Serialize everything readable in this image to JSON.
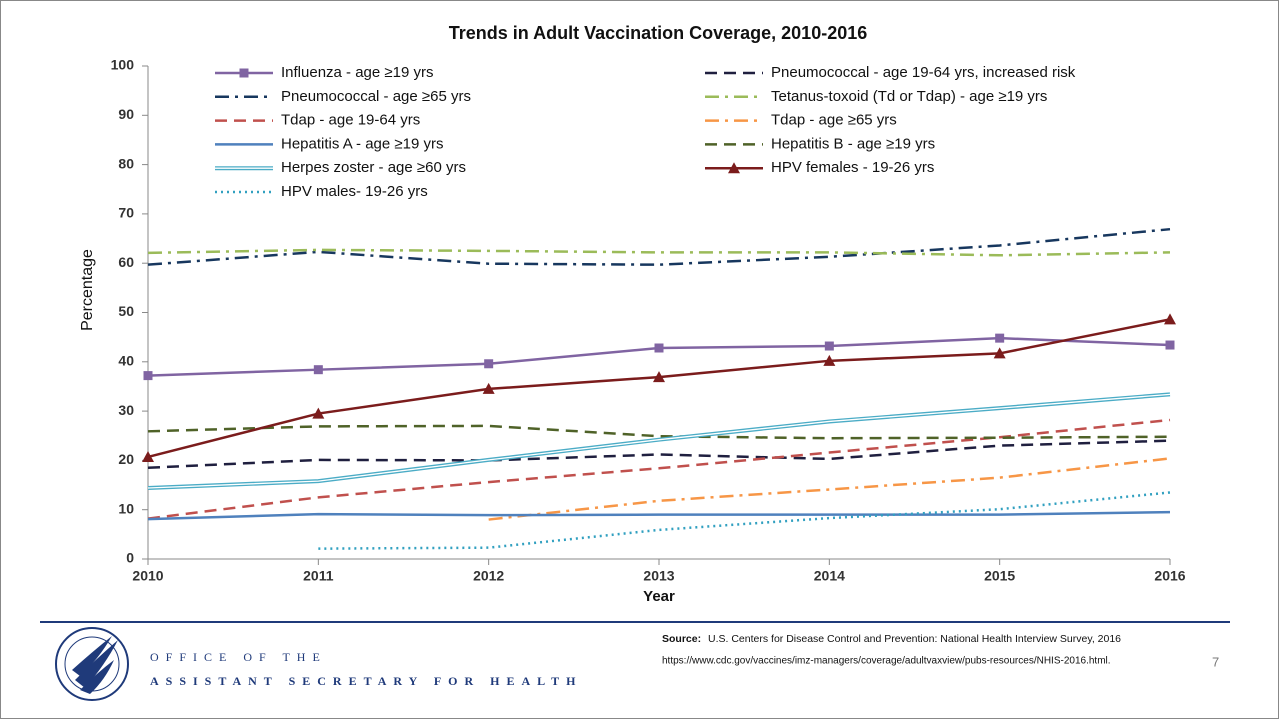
{
  "chart_data": {
    "type": "line",
    "title": "Trends in Adult Vaccination Coverage, 2010-2016",
    "x_label": "Year",
    "y_label": "Percentage",
    "x": [
      2010,
      2011,
      2012,
      2013,
      2014,
      2015,
      2016
    ],
    "xlim": [
      2010,
      2016
    ],
    "xticks": [
      2010,
      2011,
      2012,
      2013,
      2014,
      2015,
      2016
    ],
    "ylim": [
      0,
      100
    ],
    "yticks": [
      0,
      10,
      20,
      30,
      40,
      50,
      60,
      70,
      80,
      90,
      100
    ],
    "grid": false,
    "legend": "top",
    "series": [
      {
        "name": "Influenza - age ≥19 yrs",
        "color": "#8064a2",
        "dash": "solid",
        "marker": "square",
        "values": [
          37.2,
          38.4,
          39.6,
          42.8,
          43.2,
          44.8,
          43.4
        ]
      },
      {
        "name": "Pneumococcal - age 19-64 yrs, increased risk",
        "color": "#1f1f3f",
        "dash": "dash",
        "values": [
          18.5,
          20.1,
          20.0,
          21.2,
          20.3,
          23.0,
          24.0
        ]
      },
      {
        "name": "Pneumococcal - age ≥65 yrs",
        "color": "#17375e",
        "dash": "dashdot",
        "values": [
          59.7,
          62.3,
          59.9,
          59.7,
          61.3,
          63.6,
          66.9
        ]
      },
      {
        "name": "Tetanus-toxoid (Td or Tdap) - age ≥19 yrs",
        "color": "#9bbb59",
        "dash": "dashdot",
        "values": [
          62.1,
          62.7,
          62.5,
          62.2,
          62.2,
          61.6,
          62.2
        ]
      },
      {
        "name": "Tdap - age 19-64 yrs",
        "color": "#c0504d",
        "dash": "dash",
        "values": [
          8.2,
          12.5,
          15.6,
          18.4,
          21.6,
          24.7,
          28.2
        ]
      },
      {
        "name": "Tdap - age ≥65 yrs",
        "color": "#f79646",
        "dash": "dashdot",
        "values": [
          null,
          null,
          8.0,
          11.8,
          14.1,
          16.5,
          20.4
        ]
      },
      {
        "name": "Hepatitis A - age ≥19 yrs",
        "color": "#4f81bd",
        "dash": "solid",
        "values": [
          8.1,
          9.1,
          8.9,
          9.0,
          9.0,
          9.0,
          9.5
        ]
      },
      {
        "name": "Hepatitis B - age ≥19 yrs",
        "color": "#4f6228",
        "dash": "dash",
        "values": [
          25.9,
          26.9,
          27.0,
          24.9,
          24.5,
          24.6,
          24.8
        ]
      },
      {
        "name": "Herpes zoster - age ≥60 yrs",
        "color": "#4bacc6",
        "dash": "double",
        "values": [
          14.4,
          15.8,
          20.1,
          24.2,
          27.9,
          30.6,
          33.4
        ]
      },
      {
        "name": "HPV females - 19-26 yrs",
        "color": "#7b1c1c",
        "dash": "solid",
        "marker": "triangle",
        "values": [
          20.7,
          29.5,
          34.5,
          36.9,
          40.2,
          41.7,
          48.6
        ]
      },
      {
        "name": "HPV males- 19-26 yrs",
        "color": "#31a0c0",
        "dash": "dot",
        "values": [
          null,
          2.1,
          2.3,
          5.9,
          8.3,
          10.1,
          13.5
        ]
      }
    ]
  },
  "footer": {
    "office_line1": "OFFICE OF THE",
    "office_line2": "ASSISTANT SECRETARY FOR HEALTH",
    "source_label": "Source:",
    "source_text": "U.S. Centers for Disease Control and Prevention: National Health Interview Survey, 2016",
    "source_url": "https://www.cdc.gov/vaccines/imz-managers/coverage/adultvaxview/pubs-resources/NHIS-2016.html.",
    "page_number": "7"
  }
}
